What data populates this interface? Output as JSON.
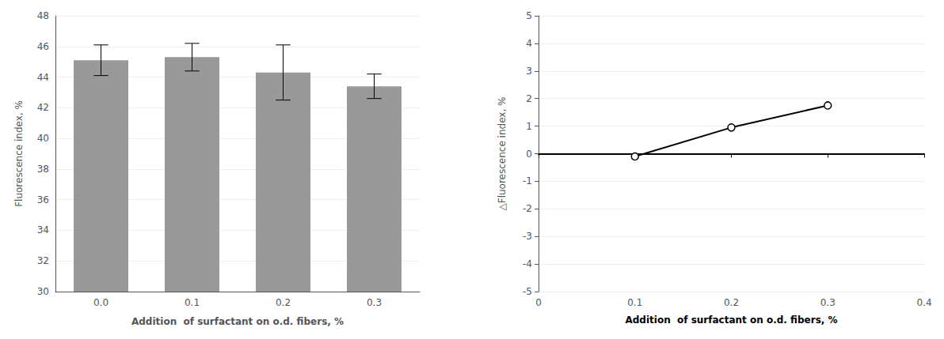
{
  "chart_data": [
    {
      "type": "bar",
      "categories": [
        "0.0",
        "0.1",
        "0.2",
        "0.3"
      ],
      "values": [
        45.1,
        45.3,
        44.3,
        43.4
      ],
      "errors": [
        1.0,
        0.9,
        1.8,
        0.8
      ],
      "color": "#999999",
      "ylim": [
        30,
        48
      ],
      "yticks": [
        30,
        32,
        34,
        36,
        38,
        40,
        42,
        44,
        46,
        48
      ],
      "ylabel": "Fluorescence index, %",
      "xlabel": "Addition  of surfactant on o.d. fibers, %",
      "grid": true
    },
    {
      "type": "line",
      "x": [
        0.1,
        0.2,
        0.3
      ],
      "values": [
        -0.1,
        0.95,
        1.75
      ],
      "color": "#000000",
      "marker": "circle",
      "xlim": [
        0,
        0.4
      ],
      "xticks": [
        0,
        0.1,
        0.2,
        0.3,
        0.4
      ],
      "ylim": [
        -5,
        5
      ],
      "yticks": [
        -5,
        -4,
        -3,
        -2,
        -1,
        0,
        1,
        2,
        3,
        4,
        5
      ],
      "ylabel": "△Fluorescence index, %",
      "xlabel": "Addition  of surfactant on o.d. fibers, %",
      "grid": true
    }
  ]
}
